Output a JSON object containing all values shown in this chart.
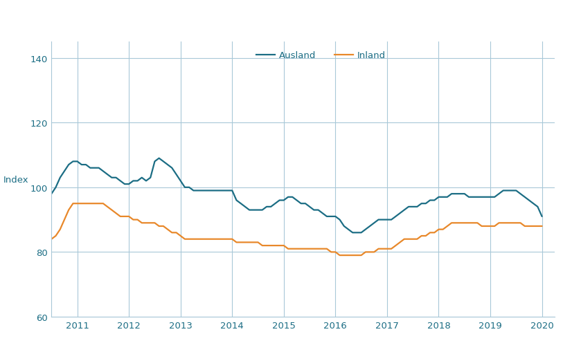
{
  "title": "",
  "ylabel": "Index",
  "xlabel": "",
  "xlim_start": 2010.5,
  "xlim_end": 2020.25,
  "ylim": [
    60,
    145
  ],
  "yticks": [
    60,
    80,
    100,
    120,
    140
  ],
  "xticks": [
    2011,
    2012,
    2013,
    2014,
    2015,
    2016,
    2017,
    2018,
    2019,
    2020
  ],
  "grid_color": "#a8c8d8",
  "background_color": "#ffffff",
  "ausland_color": "#1b6d84",
  "inland_color": "#e8882a",
  "tick_color": "#1b6d84",
  "ylabel_color": "#1b6d84",
  "legend_ausland": "Ausland",
  "legend_inland": "Inland",
  "source_color": "#1b9ec5",
  "ausland_x": [
    2010.5,
    2010.583,
    2010.667,
    2010.75,
    2010.833,
    2010.917,
    2011.0,
    2011.083,
    2011.167,
    2011.25,
    2011.333,
    2011.417,
    2011.5,
    2011.583,
    2011.667,
    2011.75,
    2011.833,
    2011.917,
    2012.0,
    2012.083,
    2012.167,
    2012.25,
    2012.333,
    2012.417,
    2012.5,
    2012.583,
    2012.667,
    2012.75,
    2012.833,
    2012.917,
    2013.0,
    2013.083,
    2013.167,
    2013.25,
    2013.333,
    2013.417,
    2013.5,
    2013.583,
    2013.667,
    2013.75,
    2013.833,
    2013.917,
    2014.0,
    2014.083,
    2014.167,
    2014.25,
    2014.333,
    2014.417,
    2014.5,
    2014.583,
    2014.667,
    2014.75,
    2014.833,
    2014.917,
    2015.0,
    2015.083,
    2015.167,
    2015.25,
    2015.333,
    2015.417,
    2015.5,
    2015.583,
    2015.667,
    2015.75,
    2015.833,
    2015.917,
    2016.0,
    2016.083,
    2016.167,
    2016.25,
    2016.333,
    2016.417,
    2016.5,
    2016.583,
    2016.667,
    2016.75,
    2016.833,
    2016.917,
    2017.0,
    2017.083,
    2017.167,
    2017.25,
    2017.333,
    2017.417,
    2017.5,
    2017.583,
    2017.667,
    2017.75,
    2017.833,
    2017.917,
    2018.0,
    2018.083,
    2018.167,
    2018.25,
    2018.333,
    2018.417,
    2018.5,
    2018.583,
    2018.667,
    2018.75,
    2018.833,
    2018.917,
    2019.0,
    2019.083,
    2019.167,
    2019.25,
    2019.333,
    2019.417,
    2019.5,
    2019.583,
    2019.667,
    2019.75,
    2019.833,
    2019.917,
    2020.0
  ],
  "ausland_y": [
    98,
    100,
    103,
    105,
    107,
    108,
    108,
    107,
    107,
    106,
    106,
    106,
    105,
    104,
    103,
    103,
    102,
    101,
    101,
    102,
    102,
    103,
    102,
    103,
    108,
    109,
    108,
    107,
    106,
    104,
    102,
    100,
    100,
    99,
    99,
    99,
    99,
    99,
    99,
    99,
    99,
    99,
    99,
    96,
    95,
    94,
    93,
    93,
    93,
    93,
    94,
    94,
    95,
    96,
    96,
    97,
    97,
    96,
    95,
    95,
    94,
    93,
    93,
    92,
    91,
    91,
    91,
    90,
    88,
    87,
    86,
    86,
    86,
    87,
    88,
    89,
    90,
    90,
    90,
    90,
    91,
    92,
    93,
    94,
    94,
    94,
    95,
    95,
    96,
    96,
    97,
    97,
    97,
    98,
    98,
    98,
    98,
    97,
    97,
    97,
    97,
    97,
    97,
    97,
    98,
    99,
    99,
    99,
    99,
    98,
    97,
    96,
    95,
    94,
    91
  ],
  "inland_x": [
    2010.5,
    2010.583,
    2010.667,
    2010.75,
    2010.833,
    2010.917,
    2011.0,
    2011.083,
    2011.167,
    2011.25,
    2011.333,
    2011.417,
    2011.5,
    2011.583,
    2011.667,
    2011.75,
    2011.833,
    2011.917,
    2012.0,
    2012.083,
    2012.167,
    2012.25,
    2012.333,
    2012.417,
    2012.5,
    2012.583,
    2012.667,
    2012.75,
    2012.833,
    2012.917,
    2013.0,
    2013.083,
    2013.167,
    2013.25,
    2013.333,
    2013.417,
    2013.5,
    2013.583,
    2013.667,
    2013.75,
    2013.833,
    2013.917,
    2014.0,
    2014.083,
    2014.167,
    2014.25,
    2014.333,
    2014.417,
    2014.5,
    2014.583,
    2014.667,
    2014.75,
    2014.833,
    2014.917,
    2015.0,
    2015.083,
    2015.167,
    2015.25,
    2015.333,
    2015.417,
    2015.5,
    2015.583,
    2015.667,
    2015.75,
    2015.833,
    2015.917,
    2016.0,
    2016.083,
    2016.167,
    2016.25,
    2016.333,
    2016.417,
    2016.5,
    2016.583,
    2016.667,
    2016.75,
    2016.833,
    2016.917,
    2017.0,
    2017.083,
    2017.167,
    2017.25,
    2017.333,
    2017.417,
    2017.5,
    2017.583,
    2017.667,
    2017.75,
    2017.833,
    2017.917,
    2018.0,
    2018.083,
    2018.167,
    2018.25,
    2018.333,
    2018.417,
    2018.5,
    2018.583,
    2018.667,
    2018.75,
    2018.833,
    2018.917,
    2019.0,
    2019.083,
    2019.167,
    2019.25,
    2019.333,
    2019.417,
    2019.5,
    2019.583,
    2019.667,
    2019.75,
    2019.833,
    2019.917,
    2020.0
  ],
  "inland_y": [
    84,
    85,
    87,
    90,
    93,
    95,
    95,
    95,
    95,
    95,
    95,
    95,
    95,
    94,
    93,
    92,
    91,
    91,
    91,
    90,
    90,
    89,
    89,
    89,
    89,
    88,
    88,
    87,
    86,
    86,
    85,
    84,
    84,
    84,
    84,
    84,
    84,
    84,
    84,
    84,
    84,
    84,
    84,
    83,
    83,
    83,
    83,
    83,
    83,
    82,
    82,
    82,
    82,
    82,
    82,
    81,
    81,
    81,
    81,
    81,
    81,
    81,
    81,
    81,
    81,
    80,
    80,
    79,
    79,
    79,
    79,
    79,
    79,
    80,
    80,
    80,
    81,
    81,
    81,
    81,
    82,
    83,
    84,
    84,
    84,
    84,
    85,
    85,
    86,
    86,
    87,
    87,
    88,
    89,
    89,
    89,
    89,
    89,
    89,
    89,
    88,
    88,
    88,
    88,
    89,
    89,
    89,
    89,
    89,
    89,
    88,
    88,
    88,
    88,
    88
  ]
}
